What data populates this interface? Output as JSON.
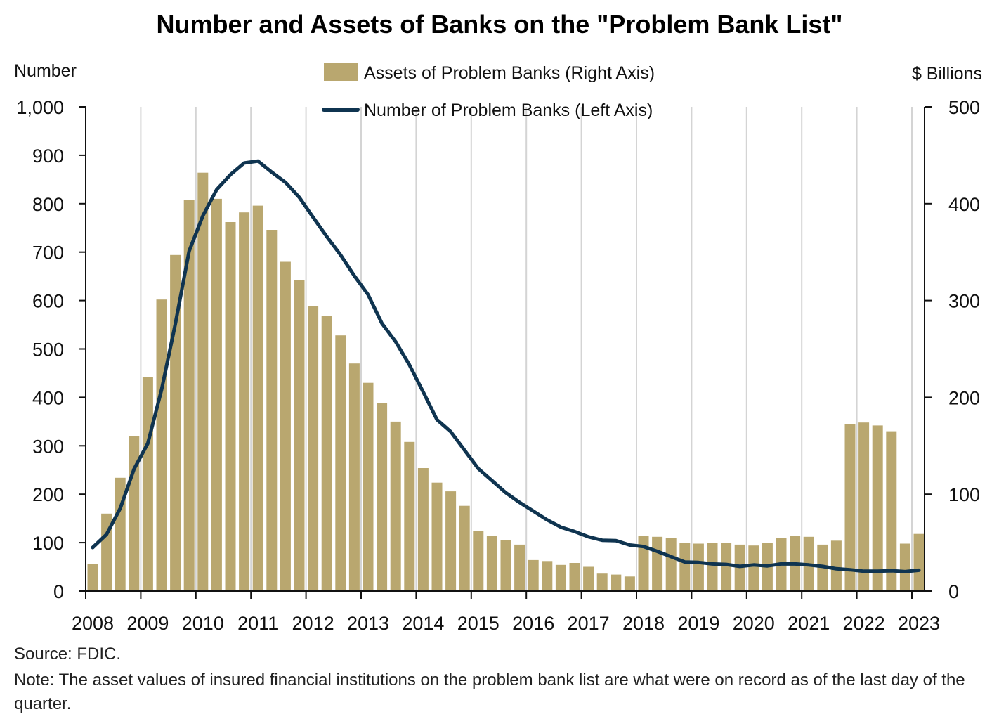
{
  "title": "Number and Assets of Banks on the \"Problem Bank List\"",
  "source": "Source: FDIC.",
  "note": "Note: The asset values of insured financial institutions on the problem bank list are what were on record as of the last day of the quarter.",
  "chart_data": {
    "type": "bar+line",
    "title": "Number and Assets of Banks on the \"Problem Bank List\"",
    "left_axis_label": "Number",
    "right_axis_label": "$ Billions",
    "left_ylim": [
      0,
      1000
    ],
    "right_ylim": [
      0,
      500
    ],
    "left_ticks": [
      "0",
      "100",
      "200",
      "300",
      "400",
      "500",
      "600",
      "700",
      "800",
      "900",
      "1,000"
    ],
    "right_ticks": [
      "0",
      "100",
      "200",
      "300",
      "400",
      "500"
    ],
    "x_tick_labels": [
      "2008",
      "2009",
      "2010",
      "2011",
      "2012",
      "2013",
      "2014",
      "2015",
      "2016",
      "2017",
      "2018",
      "2019",
      "2020",
      "2021",
      "2022",
      "2023"
    ],
    "grid": "vertical, yearly",
    "legend_position": "top-center",
    "colors": {
      "bars": "#b9a76f",
      "line": "#0f3450",
      "grid": "#d4d4d4"
    },
    "quarters": [
      "2008Q1",
      "2008Q2",
      "2008Q3",
      "2008Q4",
      "2009Q1",
      "2009Q2",
      "2009Q3",
      "2009Q4",
      "2010Q1",
      "2010Q2",
      "2010Q3",
      "2010Q4",
      "2011Q1",
      "2011Q2",
      "2011Q3",
      "2011Q4",
      "2012Q1",
      "2012Q2",
      "2012Q3",
      "2012Q4",
      "2013Q1",
      "2013Q2",
      "2013Q3",
      "2013Q4",
      "2014Q1",
      "2014Q2",
      "2014Q3",
      "2014Q4",
      "2015Q1",
      "2015Q2",
      "2015Q3",
      "2015Q4",
      "2016Q1",
      "2016Q2",
      "2016Q3",
      "2016Q4",
      "2017Q1",
      "2017Q2",
      "2017Q3",
      "2017Q4",
      "2018Q1",
      "2018Q2",
      "2018Q3",
      "2018Q4",
      "2019Q1",
      "2019Q2",
      "2019Q3",
      "2019Q4",
      "2020Q1",
      "2020Q2",
      "2020Q3",
      "2020Q4",
      "2021Q1",
      "2021Q2",
      "2021Q3",
      "2021Q4",
      "2022Q1",
      "2022Q2",
      "2022Q3",
      "2022Q4",
      "2023Q1"
    ],
    "series": [
      {
        "name": "Assets of Problem Banks (Right Axis)",
        "type": "bar",
        "axis": "right",
        "values": [
          28,
          80,
          117,
          160,
          221,
          301,
          347,
          404,
          432,
          405,
          381,
          391,
          398,
          373,
          340,
          321,
          294,
          284,
          264,
          235,
          215,
          194,
          175,
          154,
          127,
          112,
          103,
          88,
          62,
          57,
          53,
          48,
          32,
          31,
          27,
          29,
          25,
          18,
          17,
          15,
          57,
          56,
          55,
          50,
          49,
          50,
          50,
          48,
          47,
          50,
          55,
          57,
          56,
          48,
          52,
          172,
          174,
          171,
          165,
          49,
          59
        ]
      },
      {
        "name": "Number of Problem Banks (Left Axis)",
        "type": "line",
        "axis": "left",
        "values": [
          90,
          117,
          171,
          252,
          305,
          416,
          552,
          702,
          775,
          829,
          860,
          884,
          888,
          865,
          844,
          813,
          772,
          732,
          694,
          651,
          612,
          553,
          515,
          467,
          411,
          354,
          329,
          291,
          253,
          228,
          203,
          183,
          165,
          147,
          132,
          123,
          112,
          105,
          104,
          95,
          92,
          82,
          71,
          60,
          59,
          56,
          55,
          51,
          54,
          52,
          56,
          56,
          54,
          51,
          46,
          44,
          41,
          41,
          42,
          40,
          43
        ]
      }
    ]
  }
}
